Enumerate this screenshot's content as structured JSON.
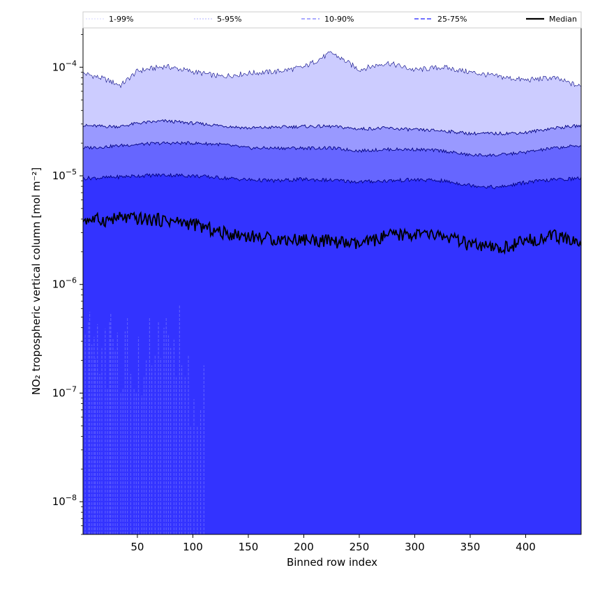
{
  "chart_data": {
    "type": "area",
    "xlabel": "Binned row index",
    "ylabel": "NO₂ tropospheric vertical column [mol m⁻²]",
    "xlim": [
      1,
      450
    ],
    "ylim": [
      5e-09,
      0.00023
    ],
    "y_scale": "log",
    "x_ticks": [
      50,
      100,
      150,
      200,
      250,
      300,
      350,
      400
    ],
    "y_ticks": [
      {
        "value": 1e-08,
        "mantissa": "10",
        "exponent": "−8"
      },
      {
        "value": 1e-07,
        "mantissa": "10",
        "exponent": "−7"
      },
      {
        "value": 1e-06,
        "mantissa": "10",
        "exponent": "−6"
      },
      {
        "value": 1e-05,
        "mantissa": "10",
        "exponent": "−5"
      },
      {
        "value": 0.0001,
        "mantissa": "10",
        "exponent": "−4"
      }
    ],
    "legend": {
      "position": "top",
      "entries": [
        "1-99%",
        "5-95%",
        "10-90%",
        "25-75%",
        "Median"
      ]
    },
    "colors": {
      "band_1_99": "#ccccff",
      "band_5_95": "#9999ff",
      "band_10_90": "#6666ff",
      "band_25_75": "#3333ff",
      "lower_spikes": "#5a5aff",
      "median": "#000000",
      "outline": "#000080"
    },
    "x_anchor": [
      1,
      20,
      35,
      50,
      75,
      100,
      125,
      150,
      175,
      200,
      225,
      250,
      275,
      300,
      325,
      350,
      375,
      400,
      425,
      450
    ],
    "series": [
      {
        "name": "1-99%",
        "kind": "band",
        "upper": [
          8.8e-05,
          7.8e-05,
          6.8e-05,
          9.2e-05,
          0.000102,
          9.1e-05,
          8.2e-05,
          8.8e-05,
          9.1e-05,
          0.0001,
          0.000136,
          9.5e-05,
          0.00011,
          9.4e-05,
          0.0001,
          9e-05,
          8.2e-05,
          7.6e-05,
          8e-05,
          6.6e-05
        ],
        "lower": [
          5e-09,
          5e-09,
          5e-09,
          5e-09,
          5e-09,
          5e-09,
          5e-09,
          5e-09,
          5e-09,
          5e-09,
          5e-09,
          5e-09,
          5e-09,
          5e-09,
          5e-09,
          5e-09,
          5e-09,
          5e-09,
          5e-09,
          5e-09
        ]
      },
      {
        "name": "5-95%",
        "kind": "band",
        "upper": [
          2.9e-05,
          2.85e-05,
          2.85e-05,
          3.05e-05,
          3.2e-05,
          3.05e-05,
          2.9e-05,
          2.75e-05,
          2.8e-05,
          2.85e-05,
          2.85e-05,
          2.7e-05,
          2.75e-05,
          2.65e-05,
          2.6e-05,
          2.45e-05,
          2.45e-05,
          2.5e-05,
          2.75e-05,
          2.9e-05
        ],
        "lower": [
          5e-09,
          5e-09,
          5e-09,
          5e-09,
          5e-09,
          5e-09,
          5e-09,
          5e-09,
          5e-09,
          5e-09,
          5e-09,
          5e-09,
          5e-09,
          5e-09,
          5e-09,
          5e-09,
          5e-09,
          5e-09,
          5e-09,
          5e-09
        ]
      },
      {
        "name": "10-90%",
        "kind": "band",
        "upper": [
          1.8e-05,
          1.85e-05,
          1.9e-05,
          1.95e-05,
          2e-05,
          2e-05,
          1.95e-05,
          1.8e-05,
          1.8e-05,
          1.8e-05,
          1.8e-05,
          1.7e-05,
          1.75e-05,
          1.75e-05,
          1.7e-05,
          1.55e-05,
          1.55e-05,
          1.65e-05,
          1.8e-05,
          1.9e-05
        ],
        "lower": [
          5e-09,
          5e-09,
          5e-09,
          5e-09,
          5e-09,
          5e-09,
          5e-09,
          5e-09,
          5e-09,
          5e-09,
          5e-09,
          5e-09,
          5e-09,
          5e-09,
          5e-09,
          5e-09,
          5e-09,
          5e-09,
          5e-09,
          5e-09
        ]
      },
      {
        "name": "25-75%",
        "kind": "band",
        "upper": [
          9.5e-06,
          9.6e-06,
          9.8e-06,
          1e-05,
          1.02e-05,
          1e-05,
          9.6e-06,
          9.2e-06,
          9e-06,
          9.3e-06,
          9.1e-06,
          8.8e-06,
          9e-06,
          9.2e-06,
          9e-06,
          8.2e-06,
          7.8e-06,
          8.7e-06,
          9.2e-06,
          9.5e-06
        ],
        "lower": [
          5e-09,
          5e-09,
          5e-09,
          5e-09,
          5e-09,
          5e-09,
          5e-09,
          5e-09,
          5e-09,
          5e-09,
          5e-09,
          5e-09,
          5e-09,
          5e-09,
          5e-09,
          5e-09,
          5e-09,
          5e-09,
          5e-09,
          5e-09
        ]
      },
      {
        "name": "Median",
        "kind": "line",
        "values": [
          4e-06,
          3.9e-06,
          4.1e-06,
          4e-06,
          3.9e-06,
          3.6e-06,
          3e-06,
          2.8e-06,
          2.6e-06,
          2.6e-06,
          2.5e-06,
          2.3e-06,
          2.8e-06,
          2.9e-06,
          2.8e-06,
          2.3e-06,
          2.1e-06,
          2.5e-06,
          2.8e-06,
          2.4e-06
        ]
      }
    ],
    "lower_spikes": [
      {
        "x": 3,
        "y": 3.5e-07
      },
      {
        "x": 6,
        "y": 4.5e-07
      },
      {
        "x": 7,
        "y": 5.6e-07
      },
      {
        "x": 9,
        "y": 2.8e-07
      },
      {
        "x": 11,
        "y": 3.3e-07
      },
      {
        "x": 12,
        "y": 2.1e-07
      },
      {
        "x": 14,
        "y": 4.3e-07
      },
      {
        "x": 16,
        "y": 1.5e-07
      },
      {
        "x": 18,
        "y": 2.6e-07
      },
      {
        "x": 21,
        "y": 3.9e-07
      },
      {
        "x": 23,
        "y": 1.1e-07
      },
      {
        "x": 25,
        "y": 4.6e-07
      },
      {
        "x": 26,
        "y": 5.4e-07
      },
      {
        "x": 28,
        "y": 3.2e-07
      },
      {
        "x": 30,
        "y": 2.5e-07
      },
      {
        "x": 32,
        "y": 3.6e-07
      },
      {
        "x": 35,
        "y": 1e-07
      },
      {
        "x": 37,
        "y": 1.1e-07
      },
      {
        "x": 39,
        "y": 3.7e-07
      },
      {
        "x": 41,
        "y": 4.9e-07
      },
      {
        "x": 44,
        "y": 1.5e-07
      },
      {
        "x": 47,
        "y": 1.1e-07
      },
      {
        "x": 49,
        "y": 1e-07
      },
      {
        "x": 51,
        "y": 3.3e-07
      },
      {
        "x": 54,
        "y": 9.5e-08
      },
      {
        "x": 56,
        "y": 1.4e-07
      },
      {
        "x": 58,
        "y": 2e-07
      },
      {
        "x": 61,
        "y": 5e-07
      },
      {
        "x": 63,
        "y": 1.8e-07
      },
      {
        "x": 66,
        "y": 2.2e-07
      },
      {
        "x": 69,
        "y": 4.5e-07
      },
      {
        "x": 71,
        "y": 2.1e-07
      },
      {
        "x": 74,
        "y": 4e-07
      },
      {
        "x": 76,
        "y": 5e-07
      },
      {
        "x": 78,
        "y": 3.4e-07
      },
      {
        "x": 80,
        "y": 2.6e-07
      },
      {
        "x": 83,
        "y": 3.1e-07
      },
      {
        "x": 85,
        "y": 1.4e-07
      },
      {
        "x": 88,
        "y": 6.4e-07
      },
      {
        "x": 90,
        "y": 1.8e-07
      },
      {
        "x": 93,
        "y": 1.4e-07
      },
      {
        "x": 96,
        "y": 2.2e-07
      },
      {
        "x": 98,
        "y": 5e-08
      },
      {
        "x": 101,
        "y": 8.8e-08
      },
      {
        "x": 104,
        "y": 5e-08
      },
      {
        "x": 107,
        "y": 7e-08
      },
      {
        "x": 110,
        "y": 1.8e-07
      }
    ]
  }
}
